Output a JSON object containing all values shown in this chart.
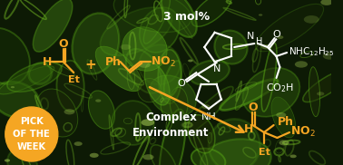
{
  "figsize": [
    3.78,
    1.82
  ],
  "dpi": 100,
  "bg_color": "#0d1a05",
  "orange": "#f5a623",
  "white": "#ffffff",
  "pick_text": "PICK\nOF THE\nWEEK",
  "pick_text_color": "#ffffff",
  "pick_circle_color": "#f5a623",
  "mol_percent": "3 mol%",
  "complex_env": "Complex\nEnvironment",
  "nhc12h25": "NHC$_{12}$H$_{25}$",
  "co2h": "CO$_2$H",
  "no2_left": "NO$_2$",
  "no2_right": "NO$_2$",
  "cell_colors": [
    "#2d5a0a",
    "#3a7010",
    "#1a3806",
    "#4a8a18",
    "#223005",
    "#1e2e08"
  ],
  "cell_edge": "#5aaa15",
  "bright_color": "#c0e860",
  "arrow_color": "#f5a623"
}
